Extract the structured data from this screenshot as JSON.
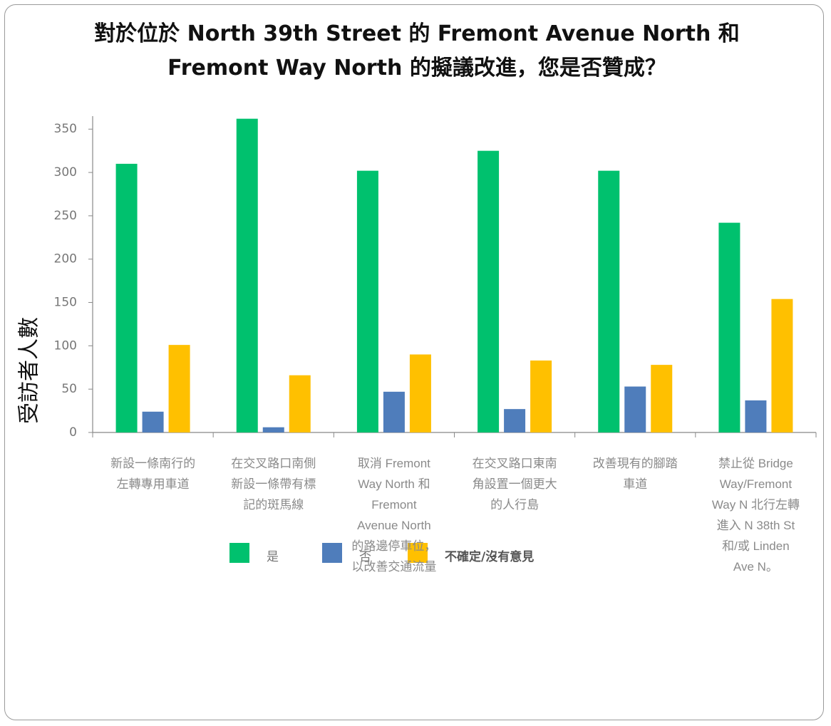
{
  "chart_data": {
    "type": "bar",
    "title": "對於位於 North 39th Street 的 Fremont Avenue North 和 Fremont Way North 的擬議改進，您是否贊成？",
    "y_label": "受訪者人數",
    "categories": [
      "新設一條南行的左轉專用車道",
      "在交叉路口南側新設一條帶有標記的斑馬線",
      "取消 Fremont Way North 和 Fremont Avenue North 的路邊停車位，以改善交通流量",
      "在交叉路口東南角設置一個更大的人行島",
      "改善現有的腳踏車道",
      "禁止從 Bridge Way/Fremont Way N 北行左轉進入 N 38th St 和/或 Linden Ave N。"
    ],
    "series": [
      {
        "name": "是",
        "color": "#00c16e",
        "values": [
          310,
          362,
          302,
          325,
          302,
          242
        ]
      },
      {
        "name": "否",
        "color": "#4f7dbb",
        "values": [
          24,
          6,
          47,
          27,
          53,
          37
        ]
      },
      {
        "name": "不確定/沒有意見",
        "color": "#ffc000",
        "values": [
          101,
          66,
          90,
          83,
          78,
          154
        ]
      }
    ],
    "ylim": [
      0,
      365
    ],
    "yticks": [
      0,
      50,
      100,
      150,
      200,
      250,
      300,
      350
    ],
    "grid": false,
    "legend": "bottom"
  }
}
